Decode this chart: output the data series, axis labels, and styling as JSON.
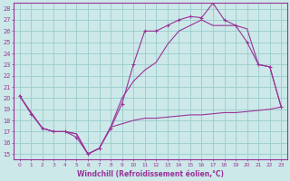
{
  "xlabel": "Windchill (Refroidissement éolien,°C)",
  "bg_color": "#cce8e8",
  "line_color": "#993399",
  "grid_color": "#99cccc",
  "xlim": [
    -0.5,
    23.5
  ],
  "ylim": [
    14.5,
    28.5
  ],
  "xticks": [
    0,
    1,
    2,
    3,
    4,
    5,
    6,
    7,
    8,
    9,
    10,
    11,
    12,
    13,
    14,
    15,
    16,
    17,
    18,
    19,
    20,
    21,
    22,
    23
  ],
  "yticks": [
    15,
    16,
    17,
    18,
    19,
    20,
    21,
    22,
    23,
    24,
    25,
    26,
    27,
    28
  ],
  "line1_x": [
    0,
    1,
    2,
    3,
    4,
    5,
    6,
    7,
    8,
    9,
    10,
    11,
    12,
    13,
    14,
    15,
    16,
    17,
    18,
    19,
    20,
    21,
    22,
    23
  ],
  "line1_y": [
    20.2,
    18.6,
    17.3,
    17.0,
    17.0,
    16.5,
    15.0,
    15.5,
    17.3,
    19.5,
    23.0,
    26.0,
    26.0,
    26.5,
    27.0,
    27.3,
    27.2,
    28.5,
    27.0,
    26.5,
    25.0,
    23.0,
    22.8,
    19.2
  ],
  "line2_x": [
    0,
    1,
    2,
    3,
    4,
    5,
    6,
    7,
    8,
    9,
    10,
    11,
    12,
    13,
    14,
    15,
    16,
    17,
    18,
    19,
    20,
    21,
    22,
    23
  ],
  "line2_y": [
    20.2,
    18.7,
    17.3,
    17.0,
    17.0,
    16.8,
    15.0,
    15.5,
    17.4,
    17.7,
    18.0,
    18.2,
    18.2,
    18.3,
    18.4,
    18.5,
    18.5,
    18.6,
    18.7,
    18.7,
    18.8,
    18.9,
    19.0,
    19.2
  ],
  "line3_x": [
    0,
    1,
    2,
    3,
    4,
    5,
    6,
    7,
    8,
    9,
    10,
    11,
    12,
    13,
    14,
    15,
    16,
    17,
    18,
    19,
    20,
    21,
    22,
    23
  ],
  "line3_y": [
    20.2,
    18.7,
    17.3,
    17.0,
    17.0,
    16.8,
    15.0,
    15.5,
    17.4,
    20.0,
    21.5,
    22.5,
    23.2,
    24.8,
    26.0,
    26.5,
    27.0,
    26.5,
    26.5,
    26.5,
    26.2,
    23.0,
    22.8,
    19.2
  ]
}
